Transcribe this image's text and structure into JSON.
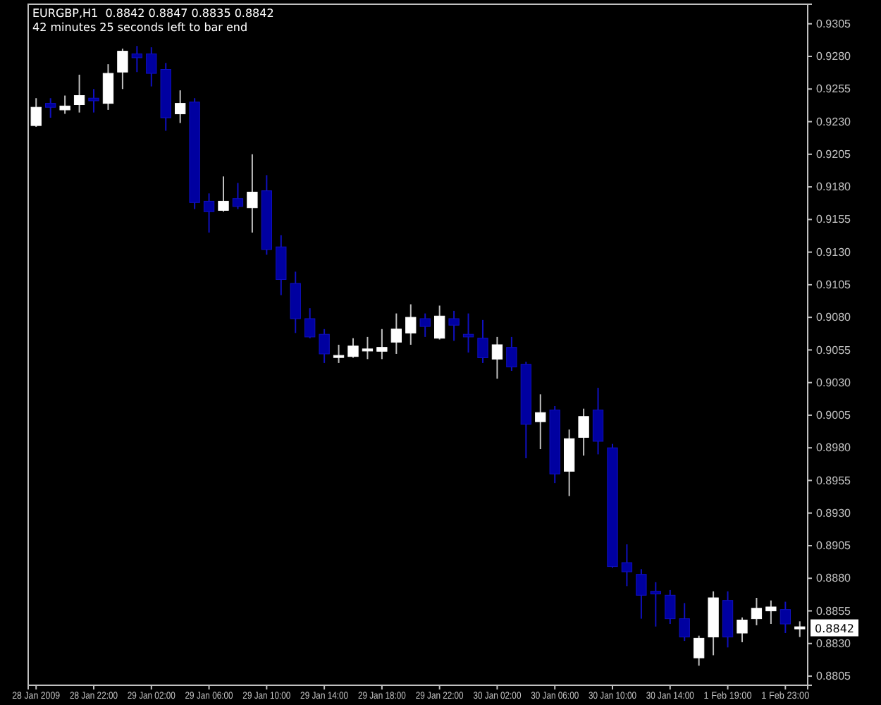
{
  "chart_data": {
    "type": "candlestick",
    "title": "EURGBP,H1  0.8842 0.8847 0.8835 0.8842",
    "subtitle": "42 minutes 25 seconds left to bar end",
    "annotations": [
      {
        "text": "0.8842",
        "y": 0.8842
      }
    ],
    "categories": [
      "28 Jan 2009",
      null,
      null,
      null,
      "28 Jan 22:00",
      null,
      null,
      null,
      "29 Jan 02:00",
      null,
      null,
      null,
      "29 Jan 06:00",
      null,
      null,
      null,
      "29 Jan 10:00",
      null,
      null,
      null,
      "29 Jan 14:00",
      null,
      null,
      null,
      "29 Jan 18:00",
      null,
      null,
      null,
      "29 Jan 22:00",
      null,
      null,
      null,
      "30 Jan 02:00",
      null,
      null,
      null,
      "30 Jan 06:00",
      null,
      null,
      null,
      "30 Jan 10:00",
      null,
      null,
      null,
      "30 Jan 14:00",
      null,
      null,
      null,
      "1 Feb 19:00",
      null,
      null,
      null,
      "1 Feb 23:00",
      null
    ],
    "ohlc": [
      [
        0.9227,
        0.9248,
        0.9226,
        0.9241
      ],
      [
        0.9244,
        0.9248,
        0.9233,
        0.9241
      ],
      [
        0.9239,
        0.925,
        0.9236,
        0.9242
      ],
      [
        0.9243,
        0.9266,
        0.9237,
        0.925
      ],
      [
        0.9248,
        0.9255,
        0.9237,
        0.9246
      ],
      [
        0.9244,
        0.9274,
        0.9239,
        0.9267
      ],
      [
        0.9268,
        0.9286,
        0.9255,
        0.9284
      ],
      [
        0.9282,
        0.9288,
        0.9268,
        0.9279
      ],
      [
        0.9282,
        0.9287,
        0.9257,
        0.9267
      ],
      [
        0.927,
        0.9275,
        0.9223,
        0.9233
      ],
      [
        0.9236,
        0.9254,
        0.9229,
        0.9244
      ],
      [
        0.9245,
        0.9248,
        0.9163,
        0.9168
      ],
      [
        0.9169,
        0.9175,
        0.9145,
        0.9161
      ],
      [
        0.9162,
        0.9188,
        0.9161,
        0.9169
      ],
      [
        0.9171,
        0.9183,
        0.9163,
        0.9165
      ],
      [
        0.9164,
        0.9205,
        0.9145,
        0.9176
      ],
      [
        0.9177,
        0.9189,
        0.9128,
        0.9132
      ],
      [
        0.9134,
        0.9143,
        0.9097,
        0.9109
      ],
      [
        0.9106,
        0.9115,
        0.9068,
        0.9079
      ],
      [
        0.9079,
        0.9087,
        0.9064,
        0.9065
      ],
      [
        0.9067,
        0.9071,
        0.9045,
        0.9052
      ],
      [
        0.9049,
        0.9059,
        0.9045,
        0.905
      ],
      [
        0.905,
        0.9064,
        0.9049,
        0.9058
      ],
      [
        0.9054,
        0.9065,
        0.9048,
        0.9055
      ],
      [
        0.9054,
        0.9071,
        0.9048,
        0.9057
      ],
      [
        0.9061,
        0.9083,
        0.9052,
        0.9071
      ],
      [
        0.9068,
        0.909,
        0.9059,
        0.908
      ],
      [
        0.9079,
        0.9083,
        0.9065,
        0.9073
      ],
      [
        0.9064,
        0.9089,
        0.9063,
        0.9081
      ],
      [
        0.9079,
        0.9085,
        0.9062,
        0.9074
      ],
      [
        0.9067,
        0.9083,
        0.9053,
        0.9065
      ],
      [
        0.9064,
        0.9078,
        0.9045,
        0.9049
      ],
      [
        0.9048,
        0.9065,
        0.9033,
        0.9059
      ],
      [
        0.9057,
        0.9065,
        0.9039,
        0.9042
      ],
      [
        0.9044,
        0.9046,
        0.8972,
        0.8998
      ],
      [
        0.9,
        0.9021,
        0.8979,
        0.9007
      ],
      [
        0.9009,
        0.9012,
        0.8953,
        0.896
      ],
      [
        0.8962,
        0.8994,
        0.8943,
        0.8987
      ],
      [
        0.8988,
        0.901,
        0.8974,
        0.9004
      ],
      [
        0.9009,
        0.9026,
        0.8975,
        0.8985
      ],
      [
        0.898,
        0.8983,
        0.8888,
        0.8889
      ],
      [
        0.8892,
        0.8906,
        0.8874,
        0.8885
      ],
      [
        0.8883,
        0.8887,
        0.8849,
        0.8867
      ],
      [
        0.887,
        0.8877,
        0.8843,
        0.8868
      ],
      [
        0.8867,
        0.8871,
        0.8845,
        0.8849
      ],
      [
        0.8849,
        0.8861,
        0.8832,
        0.8835
      ],
      [
        0.8819,
        0.8836,
        0.8813,
        0.8834
      ],
      [
        0.8835,
        0.887,
        0.8821,
        0.8865
      ],
      [
        0.8863,
        0.887,
        0.8827,
        0.8835
      ],
      [
        0.8838,
        0.885,
        0.8831,
        0.8848
      ],
      [
        0.8849,
        0.8865,
        0.8844,
        0.8857
      ],
      [
        0.8855,
        0.8863,
        0.8845,
        0.8858
      ],
      [
        0.8856,
        0.8862,
        0.8838,
        0.8845
      ],
      [
        0.8842,
        0.8847,
        0.8835,
        0.8842
      ]
    ],
    "ylim": [
      0.8798,
      0.932
    ],
    "yticks": [
      0.8805,
      {
        "value": 0.883,
        "label": "0.8830"
      },
      0.8855,
      {
        "value": 0.888,
        "label": "0.8880"
      },
      0.8905,
      {
        "value": 0.893,
        "label": "0.8930"
      },
      0.8955,
      {
        "value": 0.898,
        "label": "0.8980"
      },
      0.9005,
      {
        "value": 0.903,
        "label": "0.9030"
      },
      0.9055,
      {
        "value": 0.908,
        "label": "0.9080"
      },
      0.9105,
      {
        "value": 0.913,
        "label": "0.9130"
      },
      0.9155,
      {
        "value": 0.918,
        "label": "0.9180"
      },
      0.9205,
      {
        "value": 0.923,
        "label": "0.9230"
      },
      0.9255,
      {
        "value": 0.928,
        "label": "0.9280"
      },
      0.9305
    ]
  }
}
